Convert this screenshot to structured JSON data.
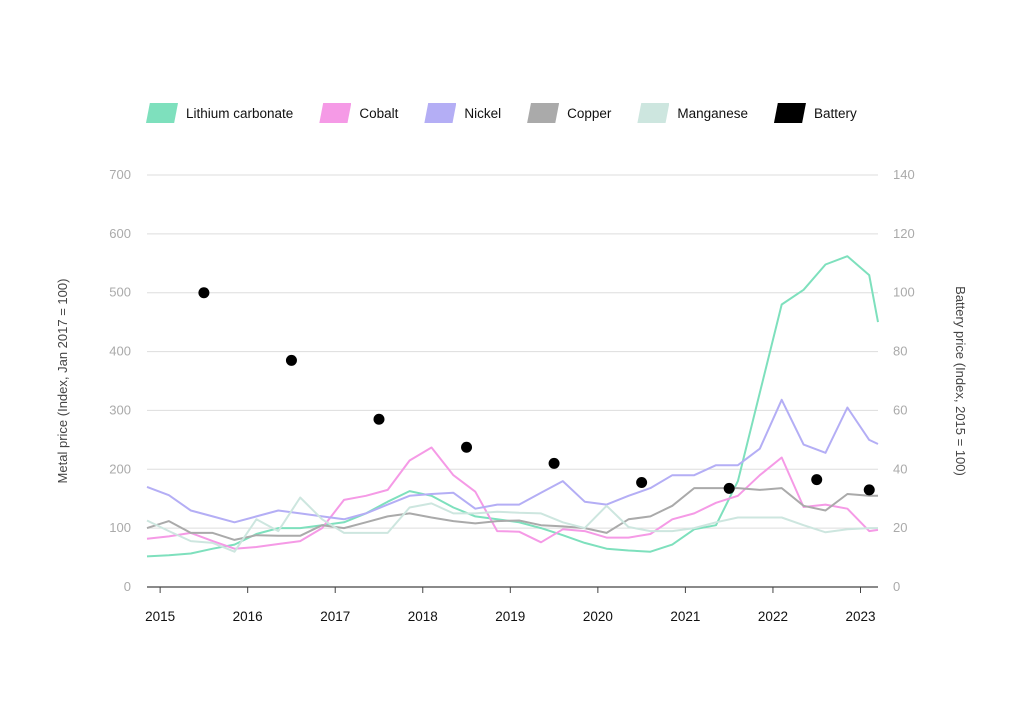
{
  "chart_data": {
    "type": "line",
    "title": "",
    "ylabel": "Metal price (Index, Jan 2017 = 100)",
    "ylabel_right": "Battery price (Index, 2015 = 100)",
    "ylim": [
      0,
      700
    ],
    "ylim_right": [
      0,
      140
    ],
    "xlim": [
      2014.85,
      2023.2
    ],
    "y_ticks": [
      0,
      100,
      200,
      300,
      400,
      500,
      600,
      700
    ],
    "y_ticks_right": [
      0,
      20,
      40,
      60,
      80,
      100,
      120,
      140
    ],
    "x_ticks": [
      2015,
      2016,
      2017,
      2018,
      2019,
      2020,
      2021,
      2022,
      2023
    ],
    "x_tick_labels": [
      "2015",
      "2016",
      "2017",
      "2018",
      "2019",
      "2020",
      "2021",
      "2022",
      "2023"
    ],
    "grid": true,
    "legend_position": "top",
    "x": [
      2014.85,
      2015.1,
      2015.35,
      2015.6,
      2015.85,
      2016.1,
      2016.35,
      2016.6,
      2016.85,
      2017.1,
      2017.35,
      2017.6,
      2017.85,
      2018.1,
      2018.35,
      2018.6,
      2018.85,
      2019.1,
      2019.35,
      2019.6,
      2019.85,
      2020.1,
      2020.35,
      2020.6,
      2020.85,
      2021.1,
      2021.35,
      2021.6,
      2021.85,
      2022.1,
      2022.35,
      2022.6,
      2022.85,
      2023.1,
      2023.2
    ],
    "series": [
      {
        "name": "Lithium carbonate",
        "color": "#7ee0bd",
        "values": [
          52,
          54,
          57,
          65,
          72,
          90,
          100,
          100,
          105,
          110,
          125,
          145,
          163,
          155,
          135,
          120,
          115,
          110,
          100,
          88,
          75,
          65,
          62,
          60,
          72,
          98,
          105,
          180,
          330,
          480,
          505,
          548,
          562,
          530,
          450
        ]
      },
      {
        "name": "Cobalt",
        "color": "#f59ae6",
        "values": [
          82,
          86,
          92,
          78,
          65,
          68,
          73,
          78,
          100,
          148,
          155,
          165,
          215,
          237,
          190,
          162,
          95,
          94,
          76,
          98,
          95,
          84,
          84,
          90,
          115,
          125,
          143,
          155,
          190,
          220,
          136,
          140,
          133,
          95,
          97
        ]
      },
      {
        "name": "Nickel",
        "color": "#b4aef5",
        "values": [
          170,
          156,
          130,
          120,
          110,
          120,
          130,
          125,
          120,
          115,
          125,
          140,
          155,
          158,
          160,
          133,
          140,
          140,
          160,
          180,
          145,
          140,
          155,
          168,
          190,
          190,
          207,
          207,
          235,
          318,
          242,
          228,
          305,
          250,
          243
        ]
      },
      {
        "name": "Copper",
        "color": "#aaaaaa",
        "values": [
          100,
          112,
          92,
          92,
          80,
          88,
          87,
          87,
          105,
          100,
          110,
          120,
          125,
          118,
          112,
          108,
          112,
          113,
          105,
          103,
          100,
          92,
          115,
          120,
          138,
          168,
          168,
          168,
          165,
          168,
          138,
          130,
          158,
          155,
          155
        ]
      },
      {
        "name": "Manganese",
        "color": "#cde6df",
        "values": [
          113,
          95,
          78,
          75,
          60,
          115,
          95,
          152,
          115,
          92,
          92,
          92,
          135,
          142,
          125,
          125,
          128,
          126,
          125,
          110,
          100,
          138,
          102,
          95,
          95,
          100,
          110,
          118,
          118,
          118,
          105,
          93,
          98,
          100,
          100
        ]
      }
    ],
    "battery": {
      "name": "Battery",
      "color": "#000000",
      "x": [
        2015.5,
        2016.5,
        2017.5,
        2018.5,
        2019.5,
        2020.5,
        2021.5,
        2022.5,
        2023.1
      ],
      "values": [
        100,
        77,
        57,
        47.5,
        42,
        35.5,
        33.5,
        36.5,
        33
      ]
    }
  }
}
